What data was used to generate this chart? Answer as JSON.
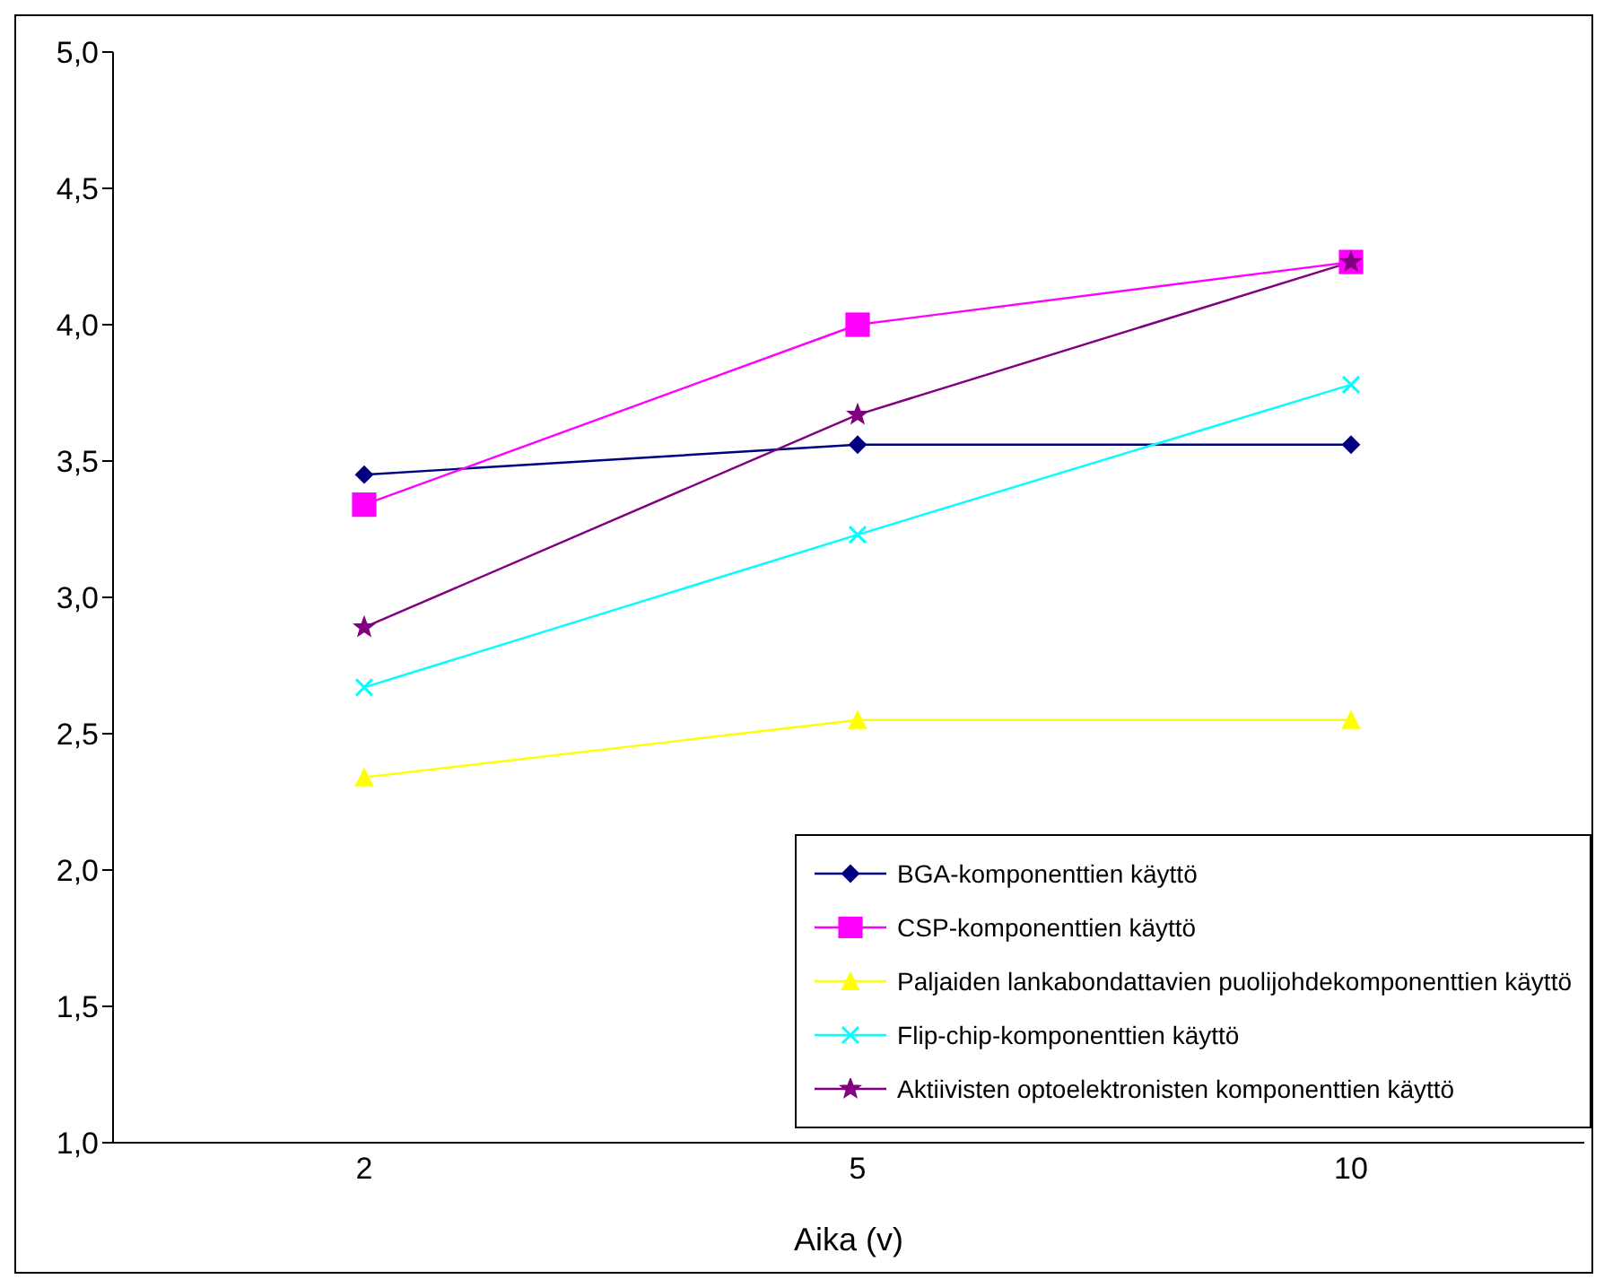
{
  "chart_data": {
    "type": "line",
    "xlabel": "Aika (v)",
    "categories": [
      "2",
      "5",
      "10"
    ],
    "ylim": [
      1,
      5
    ],
    "yticks": [
      {
        "value": 1,
        "label": "1,0"
      },
      {
        "value": 1.5,
        "label": "1,5"
      },
      {
        "value": 2,
        "label": "2,0"
      },
      {
        "value": 2.5,
        "label": "2,5"
      },
      {
        "value": 3,
        "label": "3,0"
      },
      {
        "value": 3.5,
        "label": "3,5"
      },
      {
        "value": 4,
        "label": "4,0"
      },
      {
        "value": 4.5,
        "label": "4,5"
      },
      {
        "value": 5,
        "label": "5,0"
      }
    ],
    "grid": false,
    "legend": "bottom right",
    "line_style": "solid",
    "series": [
      {
        "name": "BGA-komponenttien käyttö",
        "color": "#000080",
        "marker": "diamond",
        "values": [
          3.45,
          3.56,
          3.56
        ]
      },
      {
        "name": "CSP-komponenttien käyttö",
        "color": "#ff00ff",
        "marker": "square",
        "values": [
          3.34,
          4.0,
          4.23
        ]
      },
      {
        "name": "Paljaiden lankabondattavien puolijohdekomponenttien käyttö",
        "color": "#ffff00",
        "marker": "triangle",
        "values": [
          2.34,
          2.55,
          2.55
        ]
      },
      {
        "name": "Flip-chip-komponenttien käyttö",
        "color": "#00ffff",
        "marker": "cross",
        "values": [
          2.67,
          3.23,
          3.78
        ]
      },
      {
        "name": "Aktiivisten optoelektronisten komponenttien käyttö",
        "color": "#800080",
        "marker": "star",
        "values": [
          2.89,
          3.67,
          4.23
        ]
      }
    ]
  }
}
